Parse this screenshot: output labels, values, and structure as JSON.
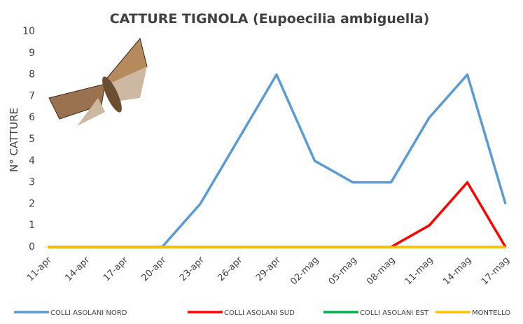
{
  "chart_data": {
    "type": "line",
    "title": "CATTURE TIGNOLA (Eupoecilia ambiguella)",
    "y_label": "N° CATTURE",
    "categories": [
      "11-apr",
      "14-apr",
      "17-apr",
      "20-apr",
      "23-apr",
      "26-apr",
      "29-apr",
      "02-mag",
      "05-mag",
      "08-mag",
      "11-mag",
      "14-mag",
      "17-mag"
    ],
    "series": [
      {
        "name": "COLLI ASOLANI NORD",
        "color": "#5b9bd5",
        "values": [
          0,
          0,
          0,
          0,
          2,
          5,
          8,
          4,
          3,
          3,
          6,
          8,
          2
        ]
      },
      {
        "name": "COLLI ASOLANI SUD",
        "color": "#ff0000",
        "values": [
          0,
          0,
          0,
          0,
          0,
          0,
          0,
          0,
          0,
          0,
          1,
          3,
          0
        ]
      },
      {
        "name": "COLLI ASOLANI EST",
        "color": "#00b050",
        "values": [
          0,
          0,
          0,
          0,
          0,
          0,
          0,
          0,
          0,
          0,
          0,
          0,
          0
        ]
      },
      {
        "name": "MONTELLO",
        "color": "#ffc000",
        "values": [
          0,
          0,
          0,
          0,
          0,
          0,
          0,
          0,
          0,
          0,
          0,
          0,
          0
        ]
      }
    ],
    "ylim": [
      0,
      10
    ],
    "yticks": [
      0,
      1,
      2,
      3,
      4,
      5,
      6,
      7,
      8,
      9,
      10
    ],
    "grid": false
  }
}
